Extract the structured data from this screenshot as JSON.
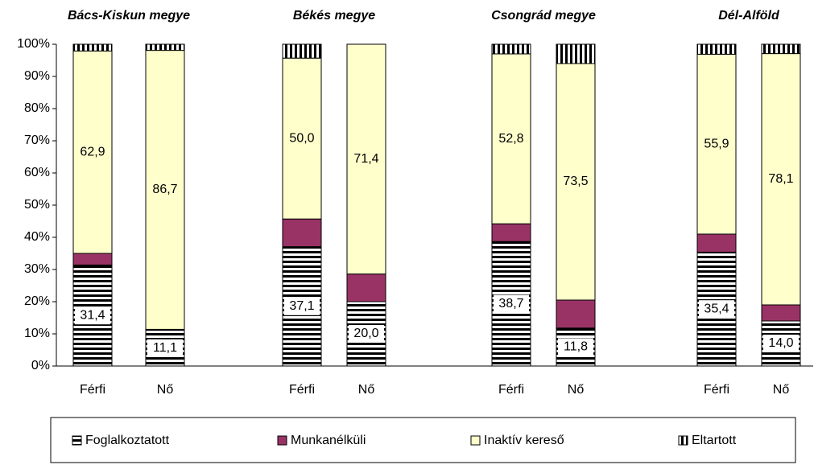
{
  "chart_data": {
    "type": "stacked_bar",
    "groups": [
      "Bács-Kiskun megye",
      "Békés megye",
      "Csongrád megye",
      "Dél-Alföld"
    ],
    "categories": [
      "Férfi",
      "Nő",
      "Férfi",
      "Nő",
      "Férfi",
      "Nő",
      "Férfi",
      "Nő"
    ],
    "series": [
      {
        "name": "Foglalkoztatott",
        "color": "#000000",
        "pattern": "horizontal",
        "values": [
          31.4,
          11.1,
          37.1,
          20.0,
          38.7,
          11.8,
          35.4,
          14.0
        ],
        "value_labels": [
          "31,4",
          "11,1",
          "37,1",
          "20,0",
          "38,7",
          "11,8",
          "35,4",
          "14,0"
        ]
      },
      {
        "name": "Munkanélküli",
        "color": "#993366",
        "values": [
          3.6,
          0.3,
          8.6,
          8.6,
          5.5,
          8.7,
          5.6,
          5.0
        ]
      },
      {
        "name": "Inaktív kereső",
        "color": "#ffffcc",
        "values": [
          62.9,
          86.7,
          50.0,
          71.4,
          52.8,
          73.5,
          55.9,
          78.1
        ],
        "value_labels": [
          "62,9",
          "86,7",
          "50,0",
          "71,4",
          "52,8",
          "73,5",
          "55,9",
          "78,1"
        ]
      },
      {
        "name": "Eltartott",
        "color": "#000000",
        "pattern": "vertical",
        "values": [
          2.1,
          1.9,
          4.3,
          0.0,
          3.0,
          6.0,
          3.1,
          2.9
        ]
      }
    ],
    "ylim": [
      0,
      100
    ],
    "yticks": [
      {
        "value": 0,
        "label": "0%"
      },
      {
        "value": 10,
        "label": "10%"
      },
      {
        "value": 20,
        "label": "20%"
      },
      {
        "value": 30,
        "label": "30%"
      },
      {
        "value": 40,
        "label": "40%"
      },
      {
        "value": 50,
        "label": "50%"
      },
      {
        "value": 60,
        "label": "60%"
      },
      {
        "value": 70,
        "label": "70%"
      },
      {
        "value": 80,
        "label": "80%"
      },
      {
        "value": 90,
        "label": "90%"
      },
      {
        "value": 100,
        "label": "100%"
      }
    ],
    "grid": false,
    "legend": "bottom"
  }
}
